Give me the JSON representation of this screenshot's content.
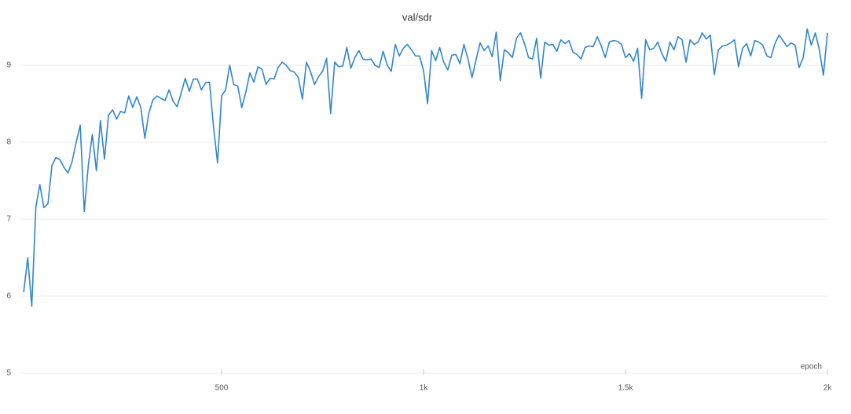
{
  "chart_data": {
    "type": "line",
    "title": "val/sdr",
    "x_label": "epoch",
    "x": [
      10,
      20,
      30,
      40,
      50,
      60,
      70,
      80,
      90,
      100,
      110,
      120,
      130,
      140,
      150,
      160,
      170,
      180,
      190,
      200,
      210,
      220,
      230,
      240,
      250,
      260,
      270,
      280,
      290,
      300,
      310,
      320,
      330,
      340,
      350,
      360,
      370,
      380,
      390,
      400,
      410,
      420,
      430,
      440,
      450,
      460,
      470,
      480,
      490,
      500,
      510,
      520,
      530,
      540,
      550,
      560,
      570,
      580,
      590,
      600,
      610,
      620,
      630,
      640,
      650,
      660,
      670,
      680,
      690,
      700,
      710,
      720,
      730,
      740,
      750,
      760,
      770,
      780,
      790,
      800,
      810,
      820,
      830,
      840,
      850,
      860,
      870,
      880,
      890,
      900,
      910,
      920,
      930,
      940,
      950,
      960,
      970,
      980,
      990,
      1000,
      1010,
      1020,
      1030,
      1040,
      1050,
      1060,
      1070,
      1080,
      1090,
      1100,
      1110,
      1120,
      1130,
      1140,
      1150,
      1160,
      1170,
      1180,
      1190,
      1200,
      1210,
      1220,
      1230,
      1240,
      1250,
      1260,
      1270,
      1280,
      1290,
      1300,
      1310,
      1320,
      1330,
      1340,
      1350,
      1360,
      1370,
      1380,
      1390,
      1400,
      1410,
      1420,
      1430,
      1440,
      1450,
      1460,
      1470,
      1480,
      1490,
      1500,
      1510,
      1520,
      1530,
      1540,
      1550,
      1560,
      1570,
      1580,
      1590,
      1600,
      1610,
      1620,
      1630,
      1640,
      1650,
      1660,
      1670,
      1680,
      1690,
      1700,
      1710,
      1720,
      1730,
      1740,
      1750,
      1760,
      1770,
      1780,
      1790,
      1800,
      1810,
      1820,
      1830,
      1840,
      1850,
      1860,
      1870,
      1880,
      1890,
      1900,
      1910,
      1920,
      1930,
      1940,
      1950,
      1960,
      1970,
      1980,
      1990,
      2000
    ],
    "series": [
      {
        "name": "val/sdr",
        "color": "#3186cc",
        "values": [
          6.05,
          6.5,
          5.87,
          7.15,
          7.45,
          7.15,
          7.2,
          7.7,
          7.8,
          7.77,
          7.67,
          7.6,
          7.75,
          8.0,
          8.22,
          7.1,
          7.7,
          8.1,
          7.63,
          8.28,
          7.78,
          8.35,
          8.42,
          8.3,
          8.4,
          8.38,
          8.6,
          8.45,
          8.59,
          8.45,
          8.05,
          8.38,
          8.55,
          8.6,
          8.57,
          8.54,
          8.68,
          8.53,
          8.46,
          8.64,
          8.83,
          8.66,
          8.82,
          8.82,
          8.68,
          8.77,
          8.78,
          8.2,
          7.73,
          8.6,
          8.68,
          9.0,
          8.75,
          8.73,
          8.45,
          8.65,
          8.9,
          8.78,
          8.98,
          8.95,
          8.75,
          8.83,
          8.82,
          8.97,
          9.04,
          9.0,
          8.93,
          8.91,
          8.84,
          8.56,
          9.04,
          8.92,
          8.75,
          8.85,
          8.92,
          9.09,
          8.37,
          9.04,
          8.98,
          8.99,
          9.23,
          8.96,
          9.1,
          9.19,
          9.08,
          9.07,
          9.08,
          9.0,
          8.97,
          9.18,
          9.0,
          8.92,
          9.27,
          9.12,
          9.22,
          9.27,
          9.2,
          9.12,
          9.12,
          8.93,
          8.5,
          9.19,
          9.06,
          9.23,
          9.04,
          8.94,
          9.13,
          9.14,
          9.02,
          9.27,
          9.08,
          8.84,
          9.07,
          9.29,
          9.19,
          9.25,
          9.11,
          9.43,
          8.8,
          9.2,
          9.16,
          9.1,
          9.35,
          9.42,
          9.28,
          9.1,
          9.08,
          9.35,
          8.83,
          9.3,
          9.26,
          9.27,
          9.18,
          9.33,
          9.28,
          9.32,
          9.17,
          9.14,
          9.08,
          9.23,
          9.25,
          9.24,
          9.37,
          9.25,
          9.1,
          9.3,
          9.32,
          9.31,
          9.27,
          9.1,
          9.15,
          9.05,
          9.22,
          8.57,
          9.33,
          9.2,
          9.22,
          9.3,
          9.15,
          9.05,
          9.3,
          9.2,
          9.37,
          9.33,
          9.04,
          9.33,
          9.27,
          9.3,
          9.42,
          9.34,
          9.39,
          8.88,
          9.2,
          9.25,
          9.26,
          9.29,
          9.33,
          8.98,
          9.22,
          9.28,
          9.12,
          9.32,
          9.3,
          9.26,
          9.12,
          9.1,
          9.28,
          9.39,
          9.32,
          9.24,
          9.29,
          9.26,
          8.97,
          9.1,
          9.47,
          9.26,
          9.42,
          9.2,
          8.87,
          9.42
        ]
      }
    ],
    "xlim": [
      0,
      2000
    ],
    "xticks": [
      500,
      {
        "value": 1000,
        "label": "1k"
      },
      {
        "value": 1500,
        "label": "1.5k"
      },
      {
        "value": 2000,
        "label": "2k"
      }
    ],
    "ylim": [
      5,
      9.5
    ],
    "yticks": [
      5,
      6,
      7,
      8,
      9
    ],
    "grid": true
  }
}
